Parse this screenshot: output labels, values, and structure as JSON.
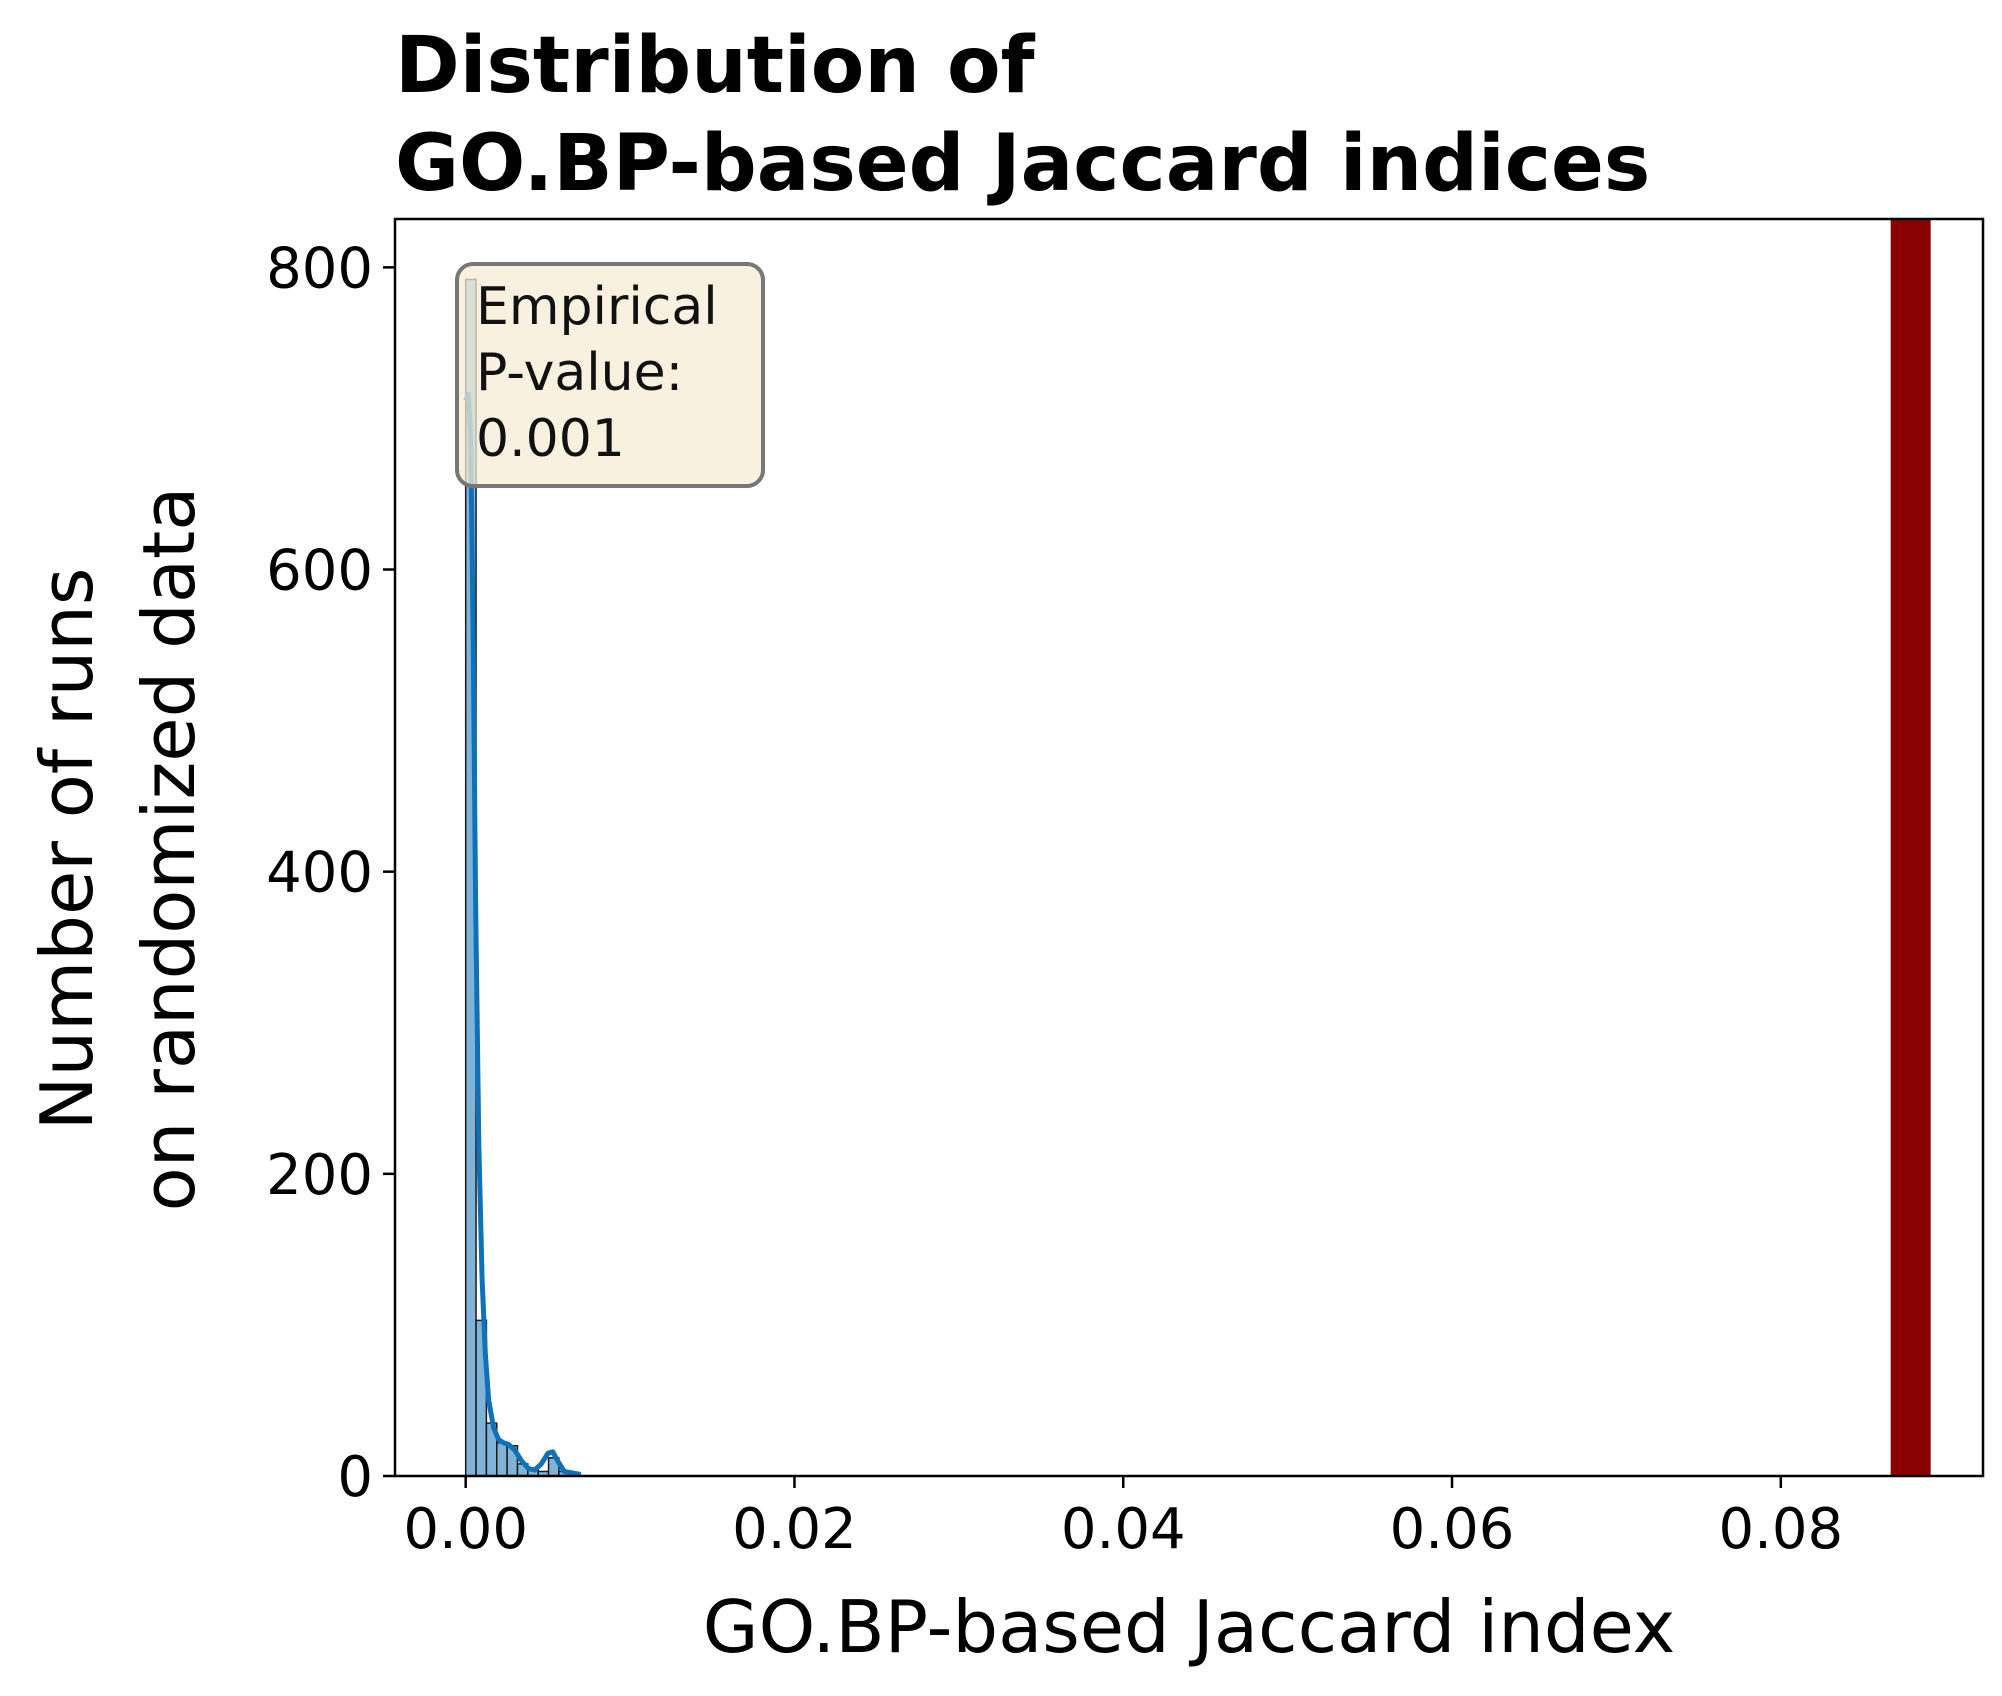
{
  "chart_data": {
    "type": "bar",
    "title_lines": [
      "Distribution of",
      "GO.BP-based Jaccard indices"
    ],
    "xlabel": "GO.BP-based Jaccard index",
    "ylabel_lines": [
      "Number of runs",
      "on randomized data"
    ],
    "xlim": [
      -0.0043,
      0.0923
    ],
    "ylim": [
      0,
      832
    ],
    "x_ticks": [
      "0.00",
      "0.02",
      "0.04",
      "0.06",
      "0.08"
    ],
    "x_tick_values": [
      0.0,
      0.02,
      0.04,
      0.06,
      0.08
    ],
    "y_ticks": [
      "0",
      "200",
      "400",
      "600",
      "800"
    ],
    "y_tick_values": [
      0,
      200,
      400,
      600,
      800
    ],
    "bin_width": 0.00063,
    "bins": [
      {
        "x0": 0.0,
        "count": 792
      },
      {
        "x0": 0.00063,
        "count": 103
      },
      {
        "x0": 0.00126,
        "count": 35
      },
      {
        "x0": 0.00189,
        "count": 22
      },
      {
        "x0": 0.00252,
        "count": 20
      },
      {
        "x0": 0.00315,
        "count": 8
      },
      {
        "x0": 0.00378,
        "count": 4
      },
      {
        "x0": 0.00441,
        "count": 3
      },
      {
        "x0": 0.00504,
        "count": 12
      },
      {
        "x0": 0.00567,
        "count": 3
      },
      {
        "x0": 0.0063,
        "count": 2
      }
    ],
    "kde": [
      [
        0.0,
        712
      ],
      [
        0.00015,
        716
      ],
      [
        0.0003,
        690
      ],
      [
        0.00045,
        560
      ],
      [
        0.0006,
        380
      ],
      [
        0.0008,
        220
      ],
      [
        0.001,
        130
      ],
      [
        0.0012,
        80
      ],
      [
        0.0014,
        50
      ],
      [
        0.0017,
        32
      ],
      [
        0.002,
        24
      ],
      [
        0.0023,
        22
      ],
      [
        0.0026,
        21
      ],
      [
        0.003,
        17
      ],
      [
        0.0034,
        10
      ],
      [
        0.0038,
        5
      ],
      [
        0.0042,
        4
      ],
      [
        0.0046,
        8
      ],
      [
        0.005,
        15
      ],
      [
        0.0053,
        16
      ],
      [
        0.0056,
        10
      ],
      [
        0.006,
        3
      ],
      [
        0.0065,
        2
      ],
      [
        0.007,
        1
      ]
    ],
    "observed_line": {
      "x": 0.0879,
      "color": "#8b0000"
    },
    "bar_color": "#7fb3d8",
    "kde_color": "#0f72b8",
    "annotation_lines": [
      "Empirical",
      "P-value:",
      "0.001"
    ],
    "annotation_box_color": "#f7ecd6"
  }
}
